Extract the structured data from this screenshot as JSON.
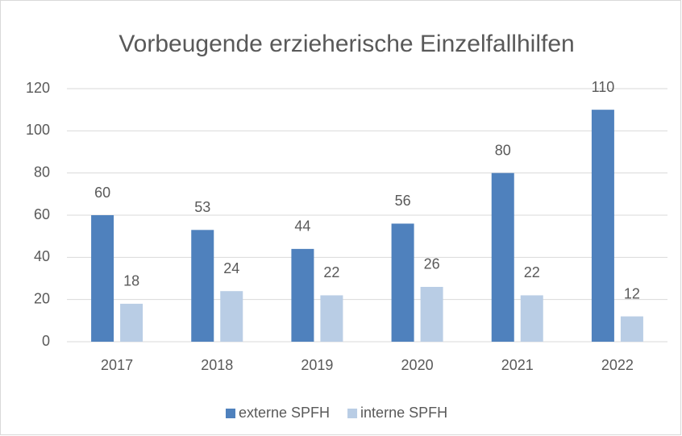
{
  "chart_data": {
    "type": "bar",
    "title": "Vorbeugende erzieherische Einzelfallhilfen",
    "categories": [
      "2017",
      "2018",
      "2019",
      "2020",
      "2021",
      "2022"
    ],
    "series": [
      {
        "name": "externe SPFH",
        "color": "#4f81bd",
        "values": [
          60,
          53,
          44,
          56,
          80,
          110
        ]
      },
      {
        "name": "interne SPFH",
        "color": "#b9cde5",
        "values": [
          18,
          24,
          22,
          26,
          22,
          12
        ]
      }
    ],
    "ylim": [
      0,
      120
    ],
    "yticks": [
      0,
      20,
      40,
      60,
      80,
      100,
      120
    ],
    "grid": true,
    "legend": "bottom"
  }
}
